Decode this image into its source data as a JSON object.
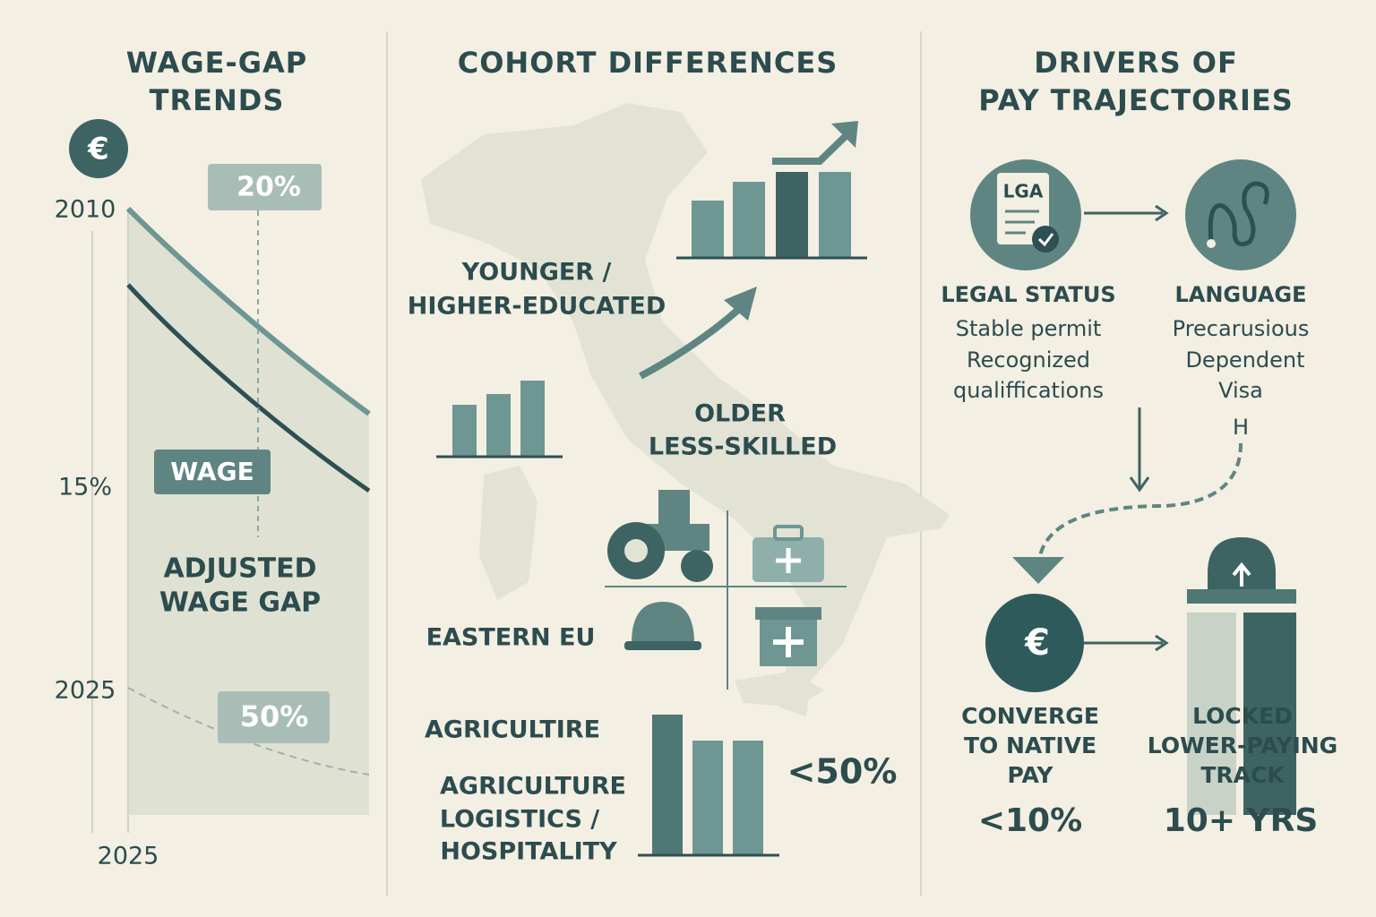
{
  "wage_gap": {
    "title": [
      "WAGE-GAP",
      "TRENDS"
    ],
    "icon": "€",
    "axis_labels": [
      "2010",
      "15%",
      "2025",
      "2025"
    ],
    "callouts": [
      "20%",
      "WAGE",
      "50%"
    ],
    "annotation": [
      "ADJUSTED",
      "WAGE GAP"
    ]
  },
  "cohorts": {
    "title": "COHORT DIFFERENCES",
    "younger": [
      "YOUNGER /",
      "HIGHER-EDUCATED"
    ],
    "older": [
      "OLDER",
      "LESS-SKILLED"
    ],
    "origin": "EASTERN EU",
    "sector_short": "AGRICULTIRE",
    "sectors": [
      "AGRICULTURE",
      "LOGISTICS /",
      "HOSPITALITY"
    ],
    "share": "<50%"
  },
  "drivers": {
    "title": [
      "DRIVERS OF",
      "PAY TRAJECTORIES"
    ],
    "document_icon": "LGA",
    "legal": {
      "heading": "LEGAL STATUS",
      "lines": [
        "Stable permit",
        "Recognized",
        "qualiffications"
      ]
    },
    "language": {
      "heading": "LANGUAGE",
      "lines": [
        "Precarusious",
        "Dependent",
        "Visa"
      ]
    },
    "marker": "H",
    "converge_icon": "€",
    "converge": {
      "heading": [
        "CONVERGE",
        "TO NATIVE",
        "PAY"
      ],
      "figure": "<10%"
    },
    "locked": {
      "heading": [
        "LOCKED",
        "LOWER-PAYING",
        "TRACK"
      ],
      "figure": "10+ YRS"
    }
  }
}
